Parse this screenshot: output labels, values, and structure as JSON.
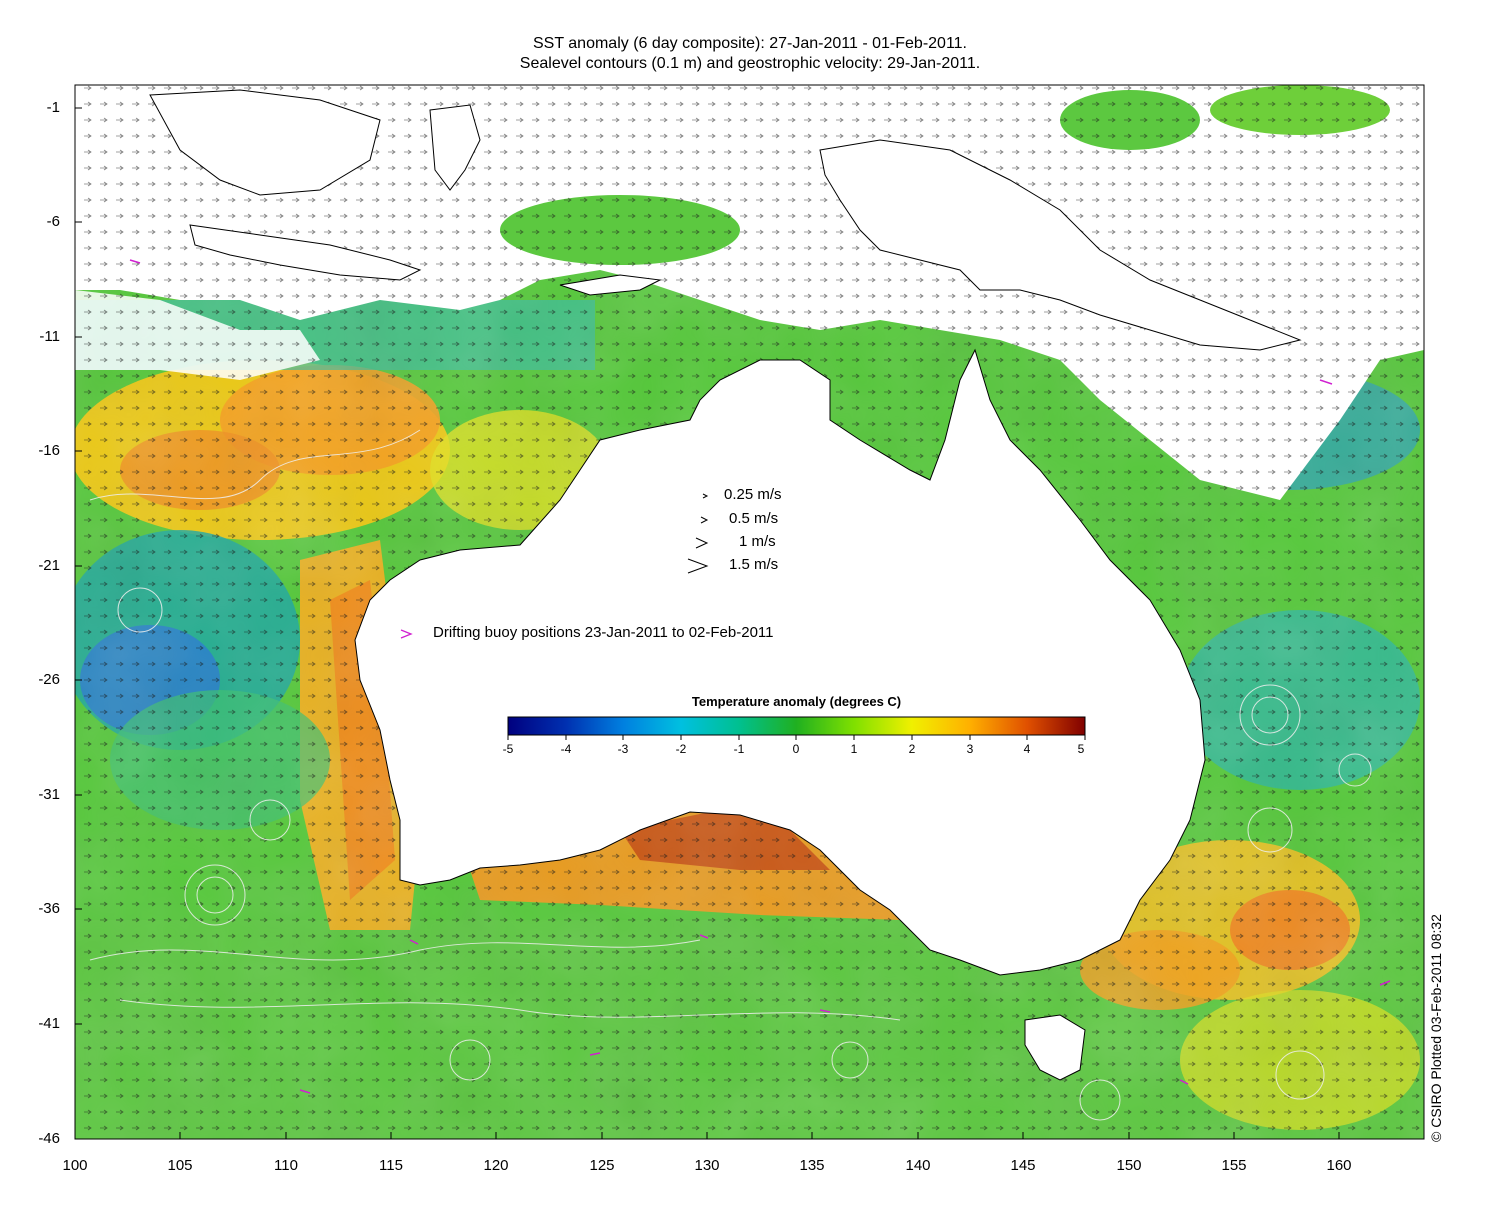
{
  "header": {
    "title_line1": "SST anomaly (6 day composite): 27-Jan-2011 - 01-Feb-2011.",
    "title_line2": "Sealevel contours (0.1 m) and geostrophic velocity: 29-Jan-2011."
  },
  "map": {
    "lon_range": [
      100,
      164
    ],
    "lat_range": [
      -46,
      0
    ],
    "y_ticks": [
      "-1",
      "-6",
      "-11",
      "-16",
      "-21",
      "-26",
      "-31",
      "-36",
      "-41",
      "-46"
    ],
    "x_ticks": [
      "100",
      "105",
      "110",
      "115",
      "120",
      "125",
      "130",
      "135",
      "140",
      "145",
      "150",
      "155",
      "160"
    ],
    "land_color": "#ffffff",
    "buoy_track_color": "#d020d0",
    "contour_color": "#e6e6e6"
  },
  "velocity_legend": {
    "items": [
      {
        "label": "0.25 m/s",
        "speed": 0.25
      },
      {
        "label": "0.5 m/s",
        "speed": 0.5
      },
      {
        "label": "1 m/s",
        "speed": 1
      },
      {
        "label": "1.5 m/s",
        "speed": 1.5
      }
    ]
  },
  "buoy_legend": {
    "symbol": ">",
    "label": "Drifting buoy positions 23-Jan-2011 to 02-Feb-2011"
  },
  "colorbar": {
    "title": "Temperature anomaly (degrees C)",
    "ticks": [
      "-5",
      "-4",
      "-3",
      "-2",
      "-1",
      "0",
      "1",
      "2",
      "3",
      "4",
      "5"
    ],
    "range": [
      -5,
      5
    ],
    "colors": [
      "#00007f",
      "#0040c0",
      "#0090e0",
      "#00c0d0",
      "#10c080",
      "#20c020",
      "#90e000",
      "#e8e800",
      "#ffb000",
      "#ff7000",
      "#c02000",
      "#800000"
    ]
  },
  "credit": "© CSIRO Plotted 03-Feb-2011 08:32"
}
